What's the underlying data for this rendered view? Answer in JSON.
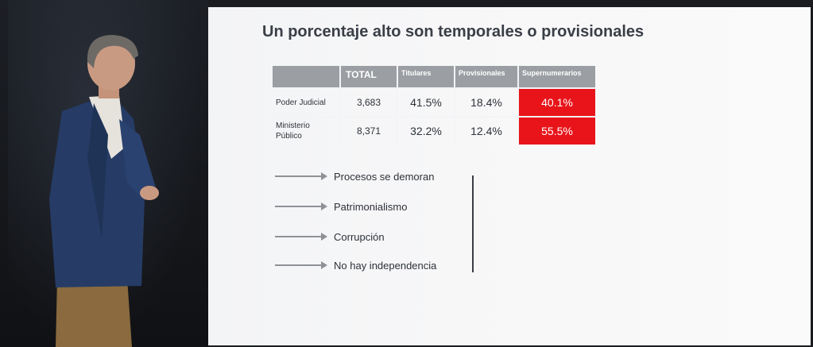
{
  "slide": {
    "title": "Un porcentaje alto son temporales o provisionales",
    "table": {
      "headers": [
        "",
        "TOTAL",
        "Titulares",
        "Provisionales",
        "Supernumerarios"
      ],
      "rows": [
        {
          "label": "Poder Judicial",
          "total": "3,683",
          "titulares": "41.5%",
          "provisionales": "18.4%",
          "supernumerarios": "40.1%"
        },
        {
          "label": "Ministerio Público",
          "total": "8,371",
          "titulares": "32.2%",
          "provisionales": "12.4%",
          "supernumerarios": "55.5%"
        }
      ],
      "highlight_color": "#e8141a"
    },
    "consequences": [
      "Procesos se demoran",
      "Patrimonialismo",
      "Corrupción",
      "No hay independencia"
    ]
  }
}
